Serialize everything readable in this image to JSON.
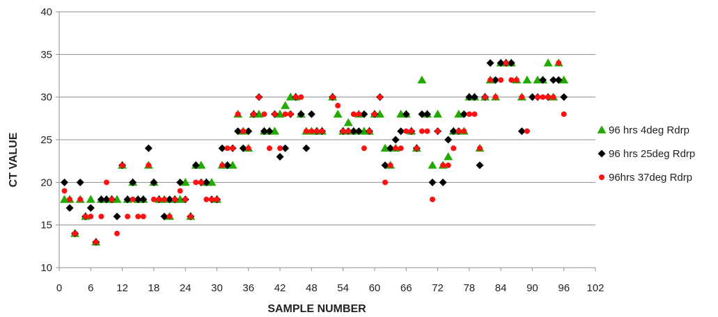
{
  "chart_data": {
    "type": "scatter",
    "xlabel": "SAMPLE NUMBER",
    "ylabel": "CT  VALUE",
    "xlim": [
      0,
      102
    ],
    "ylim": [
      10,
      40
    ],
    "xticks": [
      0,
      6,
      12,
      18,
      24,
      30,
      36,
      42,
      48,
      54,
      60,
      66,
      72,
      78,
      84,
      90,
      96,
      102
    ],
    "yticks": [
      10,
      15,
      20,
      25,
      30,
      35,
      40
    ],
    "grid": "horizontal",
    "legend": "right",
    "series": [
      {
        "name": "96 hrs 4deg Rdrp",
        "marker": "triangle",
        "color": "#22aa00",
        "points": [
          [
            1,
            18
          ],
          [
            2,
            18
          ],
          [
            3,
            14
          ],
          [
            4,
            18
          ],
          [
            5,
            16
          ],
          [
            6,
            18
          ],
          [
            7,
            13
          ],
          [
            8,
            18
          ],
          [
            9,
            18
          ],
          [
            10,
            18
          ],
          [
            11,
            18
          ],
          [
            12,
            22
          ],
          [
            13,
            18
          ],
          [
            14,
            20
          ],
          [
            15,
            18
          ],
          [
            16,
            18
          ],
          [
            17,
            22
          ],
          [
            18,
            20
          ],
          [
            19,
            18
          ],
          [
            20,
            18
          ],
          [
            21,
            16
          ],
          [
            22,
            18
          ],
          [
            23,
            18
          ],
          [
            24,
            20
          ],
          [
            25,
            16
          ],
          [
            26,
            22
          ],
          [
            27,
            22
          ],
          [
            28,
            20
          ],
          [
            29,
            20
          ],
          [
            30,
            18
          ],
          [
            31,
            22
          ],
          [
            32,
            22
          ],
          [
            33,
            22
          ],
          [
            34,
            28
          ],
          [
            35,
            26
          ],
          [
            36,
            24
          ],
          [
            37,
            28
          ],
          [
            38,
            28
          ],
          [
            39,
            26
          ],
          [
            40,
            26
          ],
          [
            41,
            26
          ],
          [
            42,
            28
          ],
          [
            43,
            29
          ],
          [
            44,
            30
          ],
          [
            45,
            30
          ],
          [
            46,
            28
          ],
          [
            47,
            26
          ],
          [
            48,
            26
          ],
          [
            49,
            26
          ],
          [
            50,
            26
          ],
          [
            52,
            30
          ],
          [
            53,
            28
          ],
          [
            54,
            26
          ],
          [
            55,
            27
          ],
          [
            56,
            26
          ],
          [
            57,
            28
          ],
          [
            58,
            26
          ],
          [
            59,
            26
          ],
          [
            60,
            28
          ],
          [
            61,
            28
          ],
          [
            62,
            24
          ],
          [
            63,
            22
          ],
          [
            64,
            24
          ],
          [
            65,
            28
          ],
          [
            66,
            28
          ],
          [
            67,
            26
          ],
          [
            68,
            24
          ],
          [
            69,
            32
          ],
          [
            70,
            28
          ],
          [
            71,
            22
          ],
          [
            72,
            28
          ],
          [
            73,
            22
          ],
          [
            74,
            23
          ],
          [
            75,
            26
          ],
          [
            76,
            28
          ],
          [
            77,
            26
          ],
          [
            78,
            30
          ],
          [
            79,
            30
          ],
          [
            80,
            24
          ],
          [
            81,
            30
          ],
          [
            82,
            32
          ],
          [
            83,
            30
          ],
          [
            84,
            34
          ],
          [
            85,
            34
          ],
          [
            86,
            34
          ],
          [
            87,
            32
          ],
          [
            88,
            30
          ],
          [
            89,
            32
          ],
          [
            91,
            32
          ],
          [
            92,
            32
          ],
          [
            93,
            34
          ],
          [
            94,
            30
          ],
          [
            95,
            34
          ],
          [
            96,
            32
          ]
        ]
      },
      {
        "name": "96 hrs 25deg Rdrp",
        "marker": "diamond",
        "color": "#000000",
        "points": [
          [
            1,
            20
          ],
          [
            2,
            17
          ],
          [
            3,
            14
          ],
          [
            4,
            20
          ],
          [
            5,
            16
          ],
          [
            6,
            17
          ],
          [
            7,
            13
          ],
          [
            8,
            18
          ],
          [
            9,
            18
          ],
          [
            10,
            18
          ],
          [
            11,
            16
          ],
          [
            12,
            22
          ],
          [
            13,
            18
          ],
          [
            14,
            20
          ],
          [
            15,
            18
          ],
          [
            16,
            18
          ],
          [
            17,
            24
          ],
          [
            18,
            20
          ],
          [
            19,
            18
          ],
          [
            20,
            16
          ],
          [
            21,
            18
          ],
          [
            22,
            18
          ],
          [
            23,
            20
          ],
          [
            24,
            18
          ],
          [
            25,
            16
          ],
          [
            26,
            22
          ],
          [
            27,
            20
          ],
          [
            28,
            20
          ],
          [
            29,
            18
          ],
          [
            30,
            18
          ],
          [
            31,
            24
          ],
          [
            32,
            22
          ],
          [
            33,
            24
          ],
          [
            34,
            26
          ],
          [
            35,
            24
          ],
          [
            36,
            26
          ],
          [
            37,
            28
          ],
          [
            38,
            30
          ],
          [
            39,
            26
          ],
          [
            40,
            26
          ],
          [
            41,
            28
          ],
          [
            42,
            23
          ],
          [
            43,
            24
          ],
          [
            44,
            28
          ],
          [
            45,
            30
          ],
          [
            46,
            28
          ],
          [
            47,
            24
          ],
          [
            48,
            28
          ],
          [
            49,
            26
          ],
          [
            50,
            26
          ],
          [
            52,
            30
          ],
          [
            54,
            26
          ],
          [
            55,
            26
          ],
          [
            56,
            26
          ],
          [
            57,
            26
          ],
          [
            58,
            28
          ],
          [
            59,
            26
          ],
          [
            60,
            28
          ],
          [
            61,
            30
          ],
          [
            62,
            22
          ],
          [
            63,
            24
          ],
          [
            64,
            25
          ],
          [
            65,
            26
          ],
          [
            66,
            28
          ],
          [
            67,
            26
          ],
          [
            68,
            24
          ],
          [
            69,
            28
          ],
          [
            70,
            28
          ],
          [
            71,
            20
          ],
          [
            72,
            26
          ],
          [
            73,
            20
          ],
          [
            74,
            25
          ],
          [
            75,
            26
          ],
          [
            76,
            26
          ],
          [
            77,
            28
          ],
          [
            78,
            30
          ],
          [
            79,
            30
          ],
          [
            80,
            22
          ],
          [
            81,
            30
          ],
          [
            82,
            34
          ],
          [
            83,
            32
          ],
          [
            84,
            34
          ],
          [
            85,
            34
          ],
          [
            86,
            34
          ],
          [
            88,
            26
          ],
          [
            90,
            30
          ],
          [
            91,
            30
          ],
          [
            92,
            32
          ],
          [
            93,
            30
          ],
          [
            94,
            32
          ],
          [
            95,
            32
          ],
          [
            96,
            30
          ]
        ]
      },
      {
        "name": "96hrs 37deg Rdrp",
        "marker": "circle",
        "color": "#ff1111",
        "points": [
          [
            1,
            19
          ],
          [
            2,
            18
          ],
          [
            3,
            14
          ],
          [
            4,
            18
          ],
          [
            5,
            16
          ],
          [
            6,
            16
          ],
          [
            7,
            13
          ],
          [
            8,
            16
          ],
          [
            9,
            20
          ],
          [
            10,
            18
          ],
          [
            11,
            14
          ],
          [
            12,
            22
          ],
          [
            13,
            16
          ],
          [
            14,
            18
          ],
          [
            15,
            16
          ],
          [
            16,
            16
          ],
          [
            17,
            22
          ],
          [
            18,
            18
          ],
          [
            19,
            18
          ],
          [
            20,
            18
          ],
          [
            21,
            16
          ],
          [
            22,
            18
          ],
          [
            23,
            19
          ],
          [
            24,
            18
          ],
          [
            25,
            16
          ],
          [
            26,
            20
          ],
          [
            27,
            20
          ],
          [
            28,
            18
          ],
          [
            29,
            18
          ],
          [
            30,
            18
          ],
          [
            31,
            22
          ],
          [
            32,
            24
          ],
          [
            33,
            24
          ],
          [
            34,
            28
          ],
          [
            35,
            26
          ],
          [
            36,
            24
          ],
          [
            37,
            28
          ],
          [
            38,
            30
          ],
          [
            39,
            28
          ],
          [
            40,
            24
          ],
          [
            41,
            28
          ],
          [
            42,
            24
          ],
          [
            43,
            28
          ],
          [
            44,
            28
          ],
          [
            45,
            30
          ],
          [
            46,
            30
          ],
          [
            47,
            26
          ],
          [
            48,
            26
          ],
          [
            49,
            26
          ],
          [
            50,
            26
          ],
          [
            52,
            30
          ],
          [
            53,
            29
          ],
          [
            54,
            26
          ],
          [
            55,
            26
          ],
          [
            56,
            28
          ],
          [
            57,
            28
          ],
          [
            58,
            24
          ],
          [
            59,
            26
          ],
          [
            60,
            28
          ],
          [
            61,
            30
          ],
          [
            62,
            20
          ],
          [
            63,
            22
          ],
          [
            64,
            24
          ],
          [
            65,
            24
          ],
          [
            66,
            26
          ],
          [
            67,
            26
          ],
          [
            68,
            24
          ],
          [
            69,
            26
          ],
          [
            70,
            26
          ],
          [
            71,
            18
          ],
          [
            72,
            26
          ],
          [
            73,
            22
          ],
          [
            74,
            22
          ],
          [
            75,
            24
          ],
          [
            76,
            26
          ],
          [
            77,
            26
          ],
          [
            78,
            28
          ],
          [
            79,
            28
          ],
          [
            80,
            24
          ],
          [
            81,
            30
          ],
          [
            82,
            32
          ],
          [
            83,
            30
          ],
          [
            84,
            32
          ],
          [
            85,
            34
          ],
          [
            86,
            32
          ],
          [
            87,
            32
          ],
          [
            88,
            30
          ],
          [
            89,
            26
          ],
          [
            91,
            30
          ],
          [
            92,
            30
          ],
          [
            93,
            30
          ],
          [
            94,
            30
          ],
          [
            95,
            34
          ],
          [
            96,
            28
          ]
        ]
      }
    ]
  }
}
